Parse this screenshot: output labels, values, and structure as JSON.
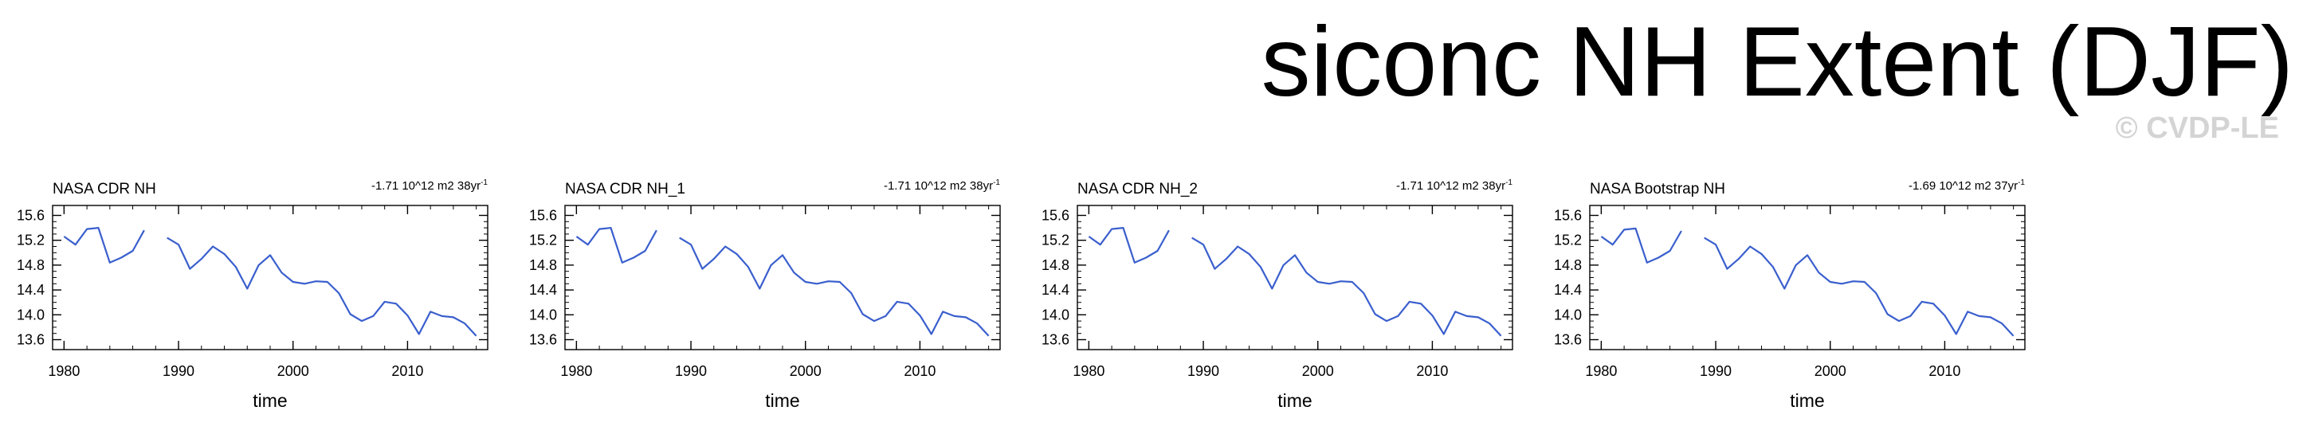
{
  "title": "siconc NH Extent (DJF)",
  "watermark": "© CVDP-LE",
  "line_color": "#3a5fcd",
  "chart_data": [
    {
      "type": "line",
      "title": "NASA CDR NH",
      "trend": "-1.71 10^12 m2 38yr",
      "trend_superscript": "-1",
      "xlabel": "time",
      "ylabel": "",
      "xlim": [
        1979,
        2017
      ],
      "ylim": [
        13.44,
        15.76
      ],
      "xticks": [
        1980,
        1990,
        2000,
        2010
      ],
      "yticks": [
        "15.6",
        "15.2",
        "14.8",
        "14.4",
        "14.0",
        "13.6"
      ],
      "x": [
        1980,
        1981,
        1982,
        1983,
        1984,
        1985,
        1986,
        1987,
        1988,
        1989,
        1990,
        1991,
        1992,
        1993,
        1994,
        1995,
        1996,
        1997,
        1998,
        1999,
        2000,
        2001,
        2002,
        2003,
        2004,
        2005,
        2006,
        2007,
        2008,
        2009,
        2010,
        2011,
        2012,
        2013,
        2014,
        2015,
        2016
      ],
      "y": [
        15.26,
        15.13,
        15.38,
        15.4,
        14.84,
        14.92,
        15.03,
        15.36,
        null,
        15.24,
        15.13,
        14.74,
        14.9,
        15.1,
        14.98,
        14.77,
        14.42,
        14.8,
        14.96,
        14.68,
        14.53,
        14.5,
        14.54,
        14.53,
        14.35,
        14.01,
        13.9,
        13.98,
        14.21,
        14.18,
        13.99,
        13.69,
        14.05,
        13.98,
        13.96,
        13.86,
        13.66
      ]
    },
    {
      "type": "line",
      "title": "NASA CDR NH_1",
      "trend": "-1.71 10^12 m2 38yr",
      "trend_superscript": "-1",
      "xlabel": "time",
      "ylabel": "",
      "xlim": [
        1979,
        2017
      ],
      "ylim": [
        13.44,
        15.76
      ],
      "xticks": [
        1980,
        1990,
        2000,
        2010
      ],
      "yticks": [
        "15.6",
        "15.2",
        "14.8",
        "14.4",
        "14.0",
        "13.6"
      ],
      "x": [
        1980,
        1981,
        1982,
        1983,
        1984,
        1985,
        1986,
        1987,
        1988,
        1989,
        1990,
        1991,
        1992,
        1993,
        1994,
        1995,
        1996,
        1997,
        1998,
        1999,
        2000,
        2001,
        2002,
        2003,
        2004,
        2005,
        2006,
        2007,
        2008,
        2009,
        2010,
        2011,
        2012,
        2013,
        2014,
        2015,
        2016
      ],
      "y": [
        15.26,
        15.13,
        15.38,
        15.4,
        14.84,
        14.92,
        15.03,
        15.36,
        null,
        15.24,
        15.13,
        14.74,
        14.9,
        15.1,
        14.98,
        14.77,
        14.42,
        14.8,
        14.96,
        14.68,
        14.53,
        14.5,
        14.54,
        14.53,
        14.35,
        14.01,
        13.9,
        13.98,
        14.21,
        14.18,
        13.99,
        13.69,
        14.05,
        13.98,
        13.96,
        13.86,
        13.66
      ]
    },
    {
      "type": "line",
      "title": "NASA CDR NH_2",
      "trend": "-1.71 10^12 m2 38yr",
      "trend_superscript": "-1",
      "xlabel": "time",
      "ylabel": "",
      "xlim": [
        1979,
        2017
      ],
      "ylim": [
        13.44,
        15.76
      ],
      "xticks": [
        1980,
        1990,
        2000,
        2010
      ],
      "yticks": [
        "15.6",
        "15.2",
        "14.8",
        "14.4",
        "14.0",
        "13.6"
      ],
      "x": [
        1980,
        1981,
        1982,
        1983,
        1984,
        1985,
        1986,
        1987,
        1988,
        1989,
        1990,
        1991,
        1992,
        1993,
        1994,
        1995,
        1996,
        1997,
        1998,
        1999,
        2000,
        2001,
        2002,
        2003,
        2004,
        2005,
        2006,
        2007,
        2008,
        2009,
        2010,
        2011,
        2012,
        2013,
        2014,
        2015,
        2016
      ],
      "y": [
        15.26,
        15.13,
        15.38,
        15.4,
        14.84,
        14.92,
        15.03,
        15.36,
        null,
        15.24,
        15.13,
        14.74,
        14.9,
        15.1,
        14.98,
        14.77,
        14.42,
        14.8,
        14.96,
        14.68,
        14.53,
        14.5,
        14.54,
        14.53,
        14.35,
        14.01,
        13.9,
        13.98,
        14.21,
        14.18,
        13.99,
        13.69,
        14.05,
        13.98,
        13.96,
        13.86,
        13.66
      ]
    },
    {
      "type": "line",
      "title": "NASA Bootstrap NH",
      "trend": "-1.69 10^12 m2 37yr",
      "trend_superscript": "-1",
      "xlabel": "time",
      "ylabel": "",
      "xlim": [
        1979,
        2017
      ],
      "ylim": [
        13.44,
        15.76
      ],
      "xticks": [
        1980,
        1990,
        2000,
        2010
      ],
      "yticks": [
        "15.6",
        "15.2",
        "14.8",
        "14.4",
        "14.0",
        "13.6"
      ],
      "x": [
        1980,
        1981,
        1982,
        1983,
        1984,
        1985,
        1986,
        1987,
        1988,
        1989,
        1990,
        1991,
        1992,
        1993,
        1994,
        1995,
        1996,
        1997,
        1998,
        1999,
        2000,
        2001,
        2002,
        2003,
        2004,
        2005,
        2006,
        2007,
        2008,
        2009,
        2010,
        2011,
        2012,
        2013,
        2014,
        2015,
        2016
      ],
      "y": [
        15.26,
        15.13,
        15.37,
        15.39,
        14.84,
        14.92,
        15.03,
        15.35,
        null,
        15.24,
        15.13,
        14.74,
        14.9,
        15.1,
        14.98,
        14.77,
        14.42,
        14.8,
        14.96,
        14.68,
        14.53,
        14.5,
        14.54,
        14.53,
        14.35,
        14.01,
        13.9,
        13.98,
        14.21,
        14.18,
        13.99,
        13.69,
        14.05,
        13.98,
        13.96,
        13.86,
        13.66
      ]
    }
  ]
}
